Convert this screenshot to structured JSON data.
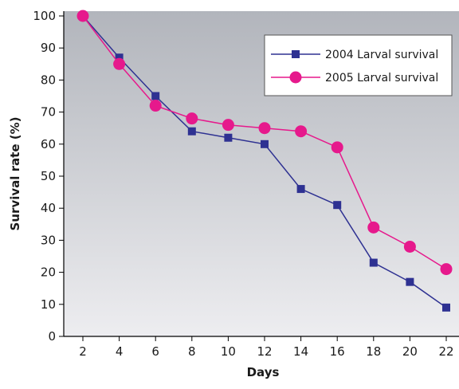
{
  "chart_data": {
    "type": "line",
    "title": "",
    "xlabel": "Days",
    "ylabel": "Survival rate (%)",
    "x": [
      2,
      4,
      6,
      8,
      10,
      12,
      14,
      16,
      18,
      20,
      22
    ],
    "xlim": [
      2,
      22
    ],
    "ylim": [
      0,
      100
    ],
    "yticks": [
      0,
      10,
      20,
      30,
      40,
      50,
      60,
      70,
      80,
      90,
      100
    ],
    "grid": false,
    "legend_position": "top-right",
    "background": "gradient-gray",
    "series": [
      {
        "name": "2004 Larval survival",
        "color": "#2e3192",
        "marker": "square",
        "values": [
          100,
          87,
          75,
          64,
          62,
          60,
          46,
          41,
          23,
          17,
          9
        ]
      },
      {
        "name": "2005 Larval survival",
        "color": "#e6198c",
        "marker": "circle",
        "values": [
          100,
          85,
          72,
          68,
          66,
          65,
          64,
          59,
          34,
          28,
          21
        ]
      }
    ]
  }
}
